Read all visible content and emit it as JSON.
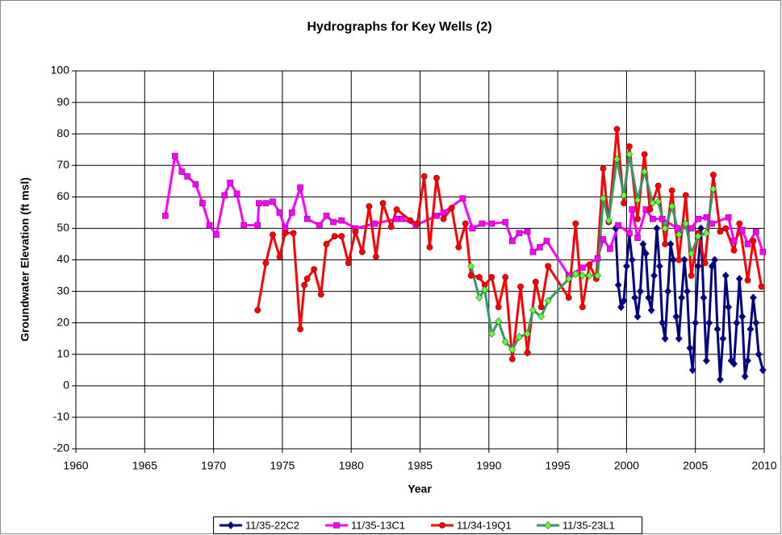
{
  "chart_data": {
    "type": "line",
    "title": "Hydrographs for Key Wells (2)",
    "x_label": "Year",
    "y_label": "Groundwater Elevation (ft msl)",
    "xlim": [
      1960,
      2010
    ],
    "xticks": [
      1960,
      1965,
      1970,
      1975,
      1980,
      1985,
      1990,
      1995,
      2000,
      2005,
      2010
    ],
    "ylim": [
      -20,
      100
    ],
    "yticks": [
      -20,
      -10,
      0,
      10,
      20,
      30,
      40,
      50,
      60,
      70,
      80,
      90,
      100
    ],
    "grid": true,
    "legend": "bottom",
    "series": [
      {
        "name": "11/35-22C2",
        "color": "#000080",
        "marker_color": "#000080",
        "marker": "diamond",
        "x": [
          1992.8,
          1995.0,
          1999.2,
          1999.4,
          1999.6,
          1999.8,
          2000.0,
          2000.2,
          2000.4,
          2000.6,
          2000.8,
          2001.0,
          2001.2,
          2001.4,
          2001.6,
          2001.8,
          2002.0,
          2002.2,
          2002.4,
          2002.6,
          2002.8,
          2003.0,
          2003.2,
          2003.4,
          2003.6,
          2003.8,
          2004.0,
          2004.2,
          2004.4,
          2004.6,
          2004.8,
          2005.0,
          2005.2,
          2005.4,
          2005.6,
          2005.8,
          2006.0,
          2006.2,
          2006.4,
          2006.6,
          2006.8,
          2007.0,
          2007.2,
          2007.4,
          2007.6,
          2007.8,
          2008.0,
          2008.2,
          2008.4,
          2008.6,
          2008.8,
          2009.0,
          2009.2,
          2009.4,
          2009.6,
          2009.9
        ],
        "values": [
          10.5,
          null,
          50,
          32,
          25,
          27,
          38,
          48,
          40,
          28,
          22,
          30,
          45,
          42,
          28,
          24,
          35,
          50,
          38,
          20,
          15,
          30,
          45,
          40,
          22,
          15,
          28,
          40,
          30,
          12,
          5,
          20,
          38,
          50,
          28,
          8,
          20,
          38,
          40,
          18,
          2,
          15,
          35,
          25,
          8,
          7,
          20,
          34,
          22,
          3,
          8,
          18,
          28,
          20,
          10,
          5
        ]
      },
      {
        "name": "11/35-13C1",
        "color": "#ff00ff",
        "marker_color": "#ff00ff",
        "marker": "square",
        "x": [
          1966.5,
          1967.2,
          1967.7,
          1968.1,
          1968.7,
          1969.2,
          1969.7,
          1970.2,
          1970.8,
          1971.2,
          1971.7,
          1972.2,
          1973.2,
          1973.3,
          1973.8,
          1974.3,
          1974.8,
          1975.2,
          1975.7,
          1976.3,
          1976.8,
          1977.7,
          1978.2,
          1978.7,
          1979.3,
          1980.3,
          1981.7,
          1983.3,
          1983.7,
          1984.7,
          1986.2,
          1986.7,
          1988.1,
          1988.8,
          1989.5,
          1990.2,
          1991.2,
          1991.7,
          1992.2,
          1992.8,
          1993.2,
          1993.7,
          1994.2,
          1995.8,
          1996.8,
          1997.9,
          1998.3,
          1998.8,
          1999.4,
          2000.2,
          2000.4,
          2000.8,
          2001.4,
          2001.9,
          2002.6,
          2003.7,
          2004.7,
          2005.2,
          2005.8,
          2006.2,
          2007.4,
          2007.8,
          2008.4,
          2008.8,
          2009.4,
          2009.9
        ],
        "values": [
          54,
          73,
          68,
          66.5,
          64,
          58,
          51,
          48,
          60.5,
          64.5,
          61,
          51,
          51,
          58,
          58,
          58.5,
          55,
          50,
          55,
          63,
          53,
          51,
          54,
          52,
          52.5,
          50,
          51.5,
          53,
          53,
          51,
          54,
          55,
          59.5,
          50,
          51.5,
          51.5,
          52,
          46,
          48.5,
          49,
          42.5,
          44,
          46,
          35,
          37.5,
          40.5,
          46.5,
          43.5,
          51,
          48.5,
          56,
          47,
          56,
          53,
          53,
          50,
          50,
          53,
          53.5,
          51.5,
          53.5,
          46,
          49.5,
          45,
          49,
          42.5
        ]
      },
      {
        "name": "11/34-19Q1",
        "color": "#ff0000",
        "marker_color": "#ff0000",
        "marker": "circle",
        "x": [
          1973.2,
          1973.8,
          1974.3,
          1974.8,
          1975.2,
          1975.8,
          1976.3,
          1976.6,
          1976.8,
          1977.3,
          1977.8,
          1978.2,
          1978.8,
          1979.3,
          1979.8,
          1980.3,
          1980.8,
          1981.3,
          1981.8,
          1982.3,
          1982.9,
          1983.3,
          1984.3,
          1984.8,
          1985.3,
          1985.7,
          1986.2,
          1986.7,
          1987.3,
          1987.8,
          1988.3,
          1988.7,
          1989.3,
          1989.7,
          1990.2,
          1990.7,
          1991.2,
          1991.7,
          1992.3,
          1992.8,
          1993.4,
          1993.8,
          1994.3,
          1995.8,
          1996.3,
          1996.8,
          1997.3,
          1997.8,
          1998.3,
          1998.7,
          1999.3,
          1999.8,
          2000.2,
          2000.8,
          2001.3,
          2001.7,
          2002.3,
          2002.8,
          2003.3,
          2003.8,
          2004.3,
          2004.7,
          2005.2,
          2005.7,
          2006.3,
          2006.8,
          2007.2,
          2007.8,
          2008.2,
          2008.8,
          2009.2,
          2009.8
        ],
        "values": [
          24,
          39,
          48,
          41,
          48.5,
          48.5,
          18,
          32,
          34,
          37,
          29,
          45,
          47.5,
          47.5,
          39,
          49,
          42.5,
          57,
          41,
          58,
          50.5,
          56,
          52.5,
          51.5,
          66.5,
          44,
          66,
          53,
          56.5,
          44,
          51.5,
          35,
          34.5,
          32,
          34.5,
          25,
          34.5,
          8.5,
          31.5,
          10.5,
          33,
          25,
          38,
          28,
          51.5,
          25,
          38.5,
          34,
          69,
          52,
          81.5,
          58,
          76,
          53,
          73.5,
          56,
          63.5,
          45,
          62,
          40,
          60.5,
          35,
          48.5,
          39,
          67,
          49,
          50,
          43,
          51.5,
          33.5,
          46,
          31.5
        ]
      },
      {
        "name": "11/35-23L1",
        "color": "#339966",
        "marker_color": "#66ff33",
        "marker": "diamond",
        "x": [
          1988.7,
          1989.3,
          1989.7,
          1990.2,
          1990.7,
          1991.2,
          1991.7,
          1992.2,
          1992.8,
          1993.2,
          1993.8,
          1994.3,
          1995.8,
          1996.3,
          1996.8,
          1997.3,
          1997.9,
          1998.3,
          1998.7,
          1999.3,
          1999.8,
          2000.2,
          2000.8,
          2001.3,
          2001.9,
          2002.3,
          2002.8,
          2003.3,
          2003.8,
          2004.3,
          2004.7,
          2005.2,
          2005.8,
          2006.3
        ],
        "values": [
          38,
          28,
          30.5,
          16.5,
          20.5,
          14,
          11.5,
          15.5,
          16.5,
          24,
          22,
          27,
          34,
          35.5,
          35,
          35,
          35,
          59.5,
          52.5,
          72,
          60.5,
          73.5,
          59,
          68,
          58,
          58.5,
          50,
          57,
          48,
          51.5,
          42,
          47.5,
          48.5,
          62.5
        ]
      }
    ]
  }
}
